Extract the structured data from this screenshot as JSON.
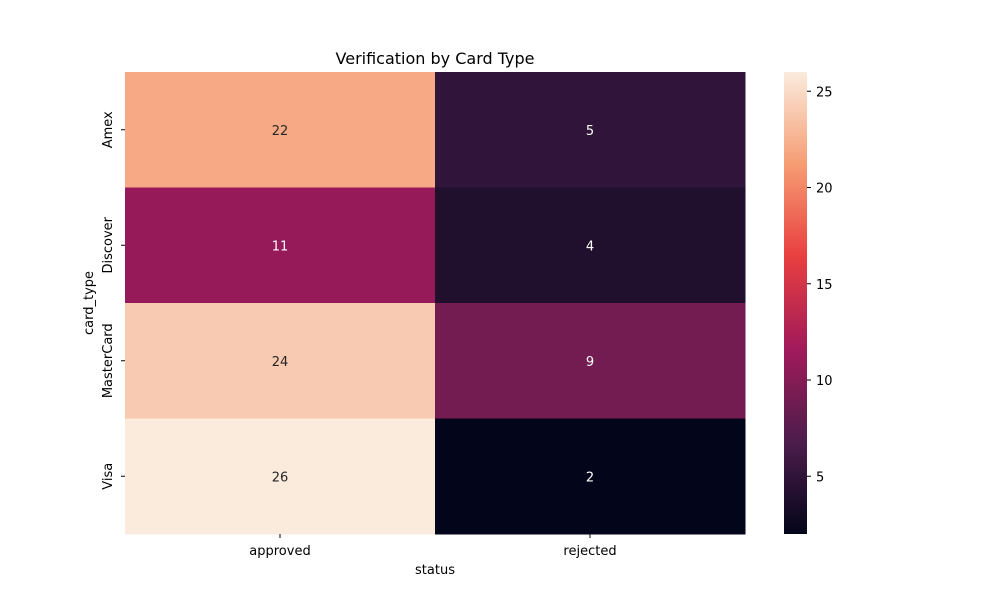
{
  "chart_data": {
    "type": "heatmap",
    "title": "Verification by Card Type",
    "xlabel": "status",
    "ylabel": "card_type",
    "x_categories": [
      "approved",
      "rejected"
    ],
    "y_categories": [
      "Amex",
      "Discover",
      "MasterCard",
      "Visa"
    ],
    "values": [
      [
        22,
        5
      ],
      [
        11,
        4
      ],
      [
        24,
        9
      ],
      [
        26,
        2
      ]
    ],
    "colorbar": {
      "min": 2,
      "max": 26,
      "ticks": [
        5,
        10,
        15,
        20,
        25
      ],
      "colormap": "rocket",
      "stops": [
        "#03051a",
        "#4c1d4b",
        "#a11a5b",
        "#e83f3f",
        "#f69c73",
        "#faebdd"
      ]
    },
    "annotation_colors": {
      "light": "#ffffff",
      "dark": "#262626"
    }
  }
}
